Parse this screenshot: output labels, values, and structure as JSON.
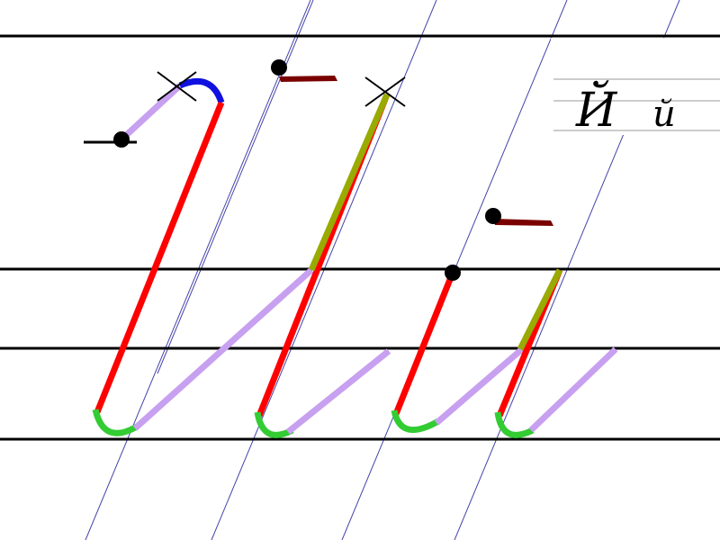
{
  "sample": {
    "upper": "Й",
    "lower": "й"
  }
}
